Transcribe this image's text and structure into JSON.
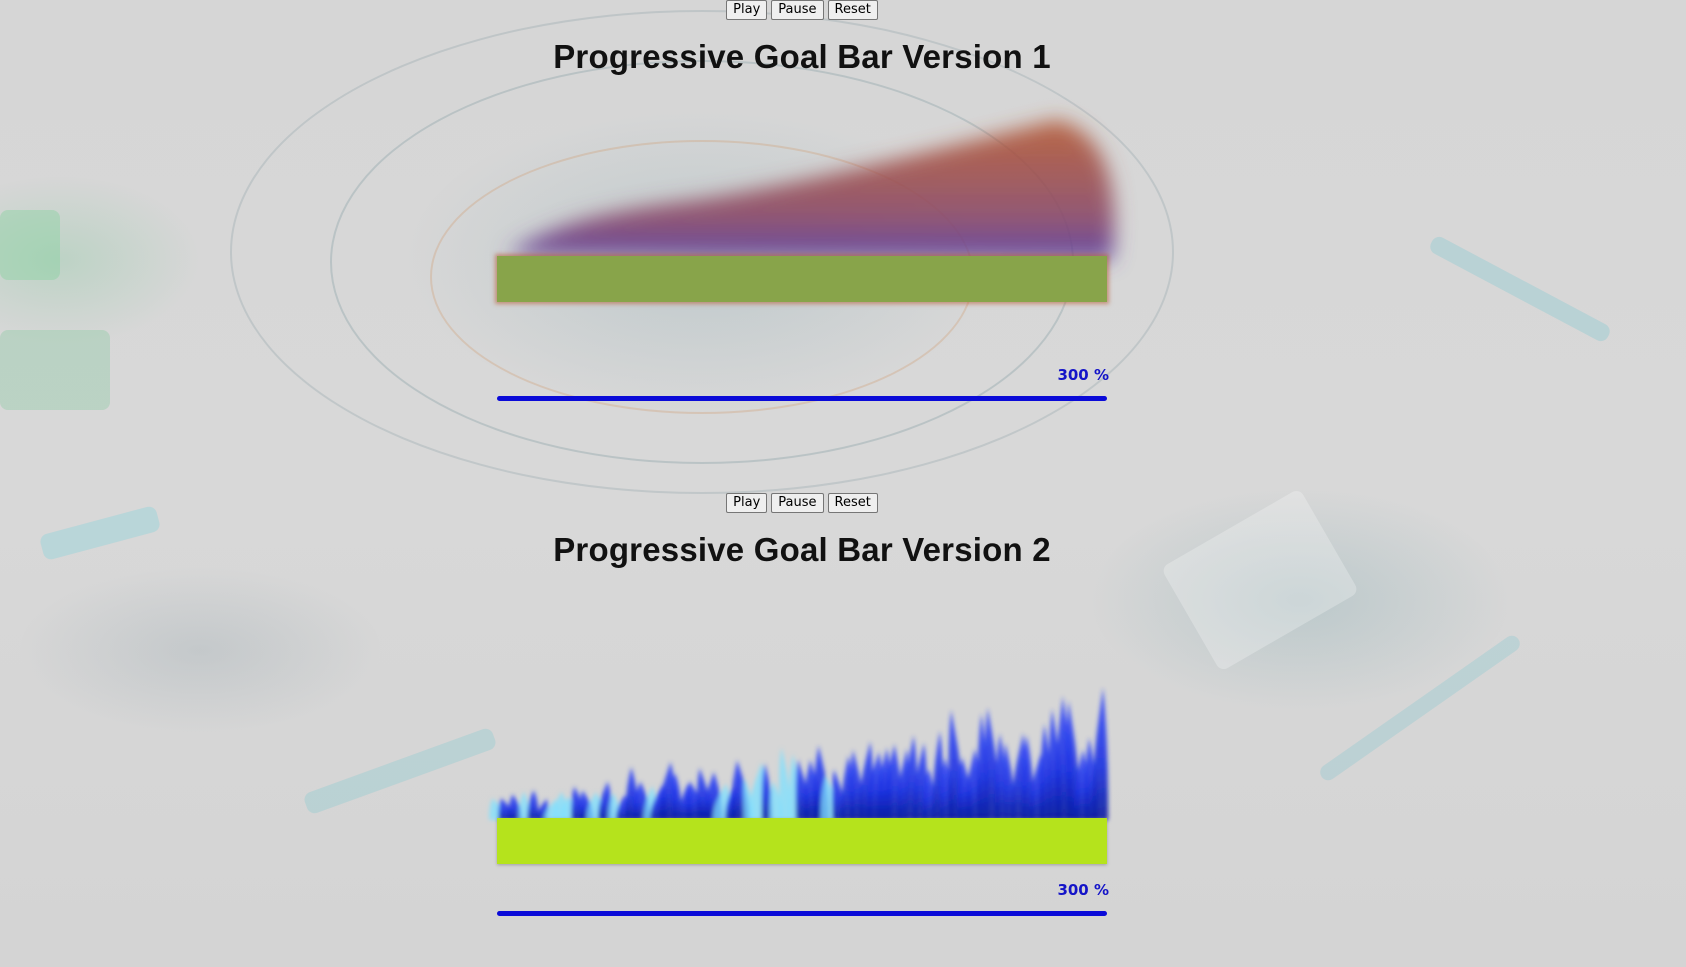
{
  "colors": {
    "background": "#d9d9d9",
    "bar1_fill": "#88a44a",
    "bar1_flame": "#b4532a",
    "bar1_flame_inner": "#6a3c9a",
    "bar2_fill": "#b5e31c",
    "bar2_flame": "#1a3cf0",
    "bar2_flame_light": "#7fe0ff",
    "progress_line": "#0a0ad8",
    "percent_text": "#1414c8"
  },
  "sections": [
    {
      "controls": {
        "play": "Play",
        "pause": "Pause",
        "reset": "Reset"
      },
      "title": "Progressive Goal Bar Version 1",
      "percent_label": "300 %",
      "progress_fraction": 1.0,
      "flame_style": "smoke-fire"
    },
    {
      "controls": {
        "play": "Play",
        "pause": "Pause",
        "reset": "Reset"
      },
      "title": "Progressive Goal Bar Version 2",
      "percent_label": "300 %",
      "progress_fraction": 1.0,
      "flame_style": "blue-fire"
    }
  ]
}
